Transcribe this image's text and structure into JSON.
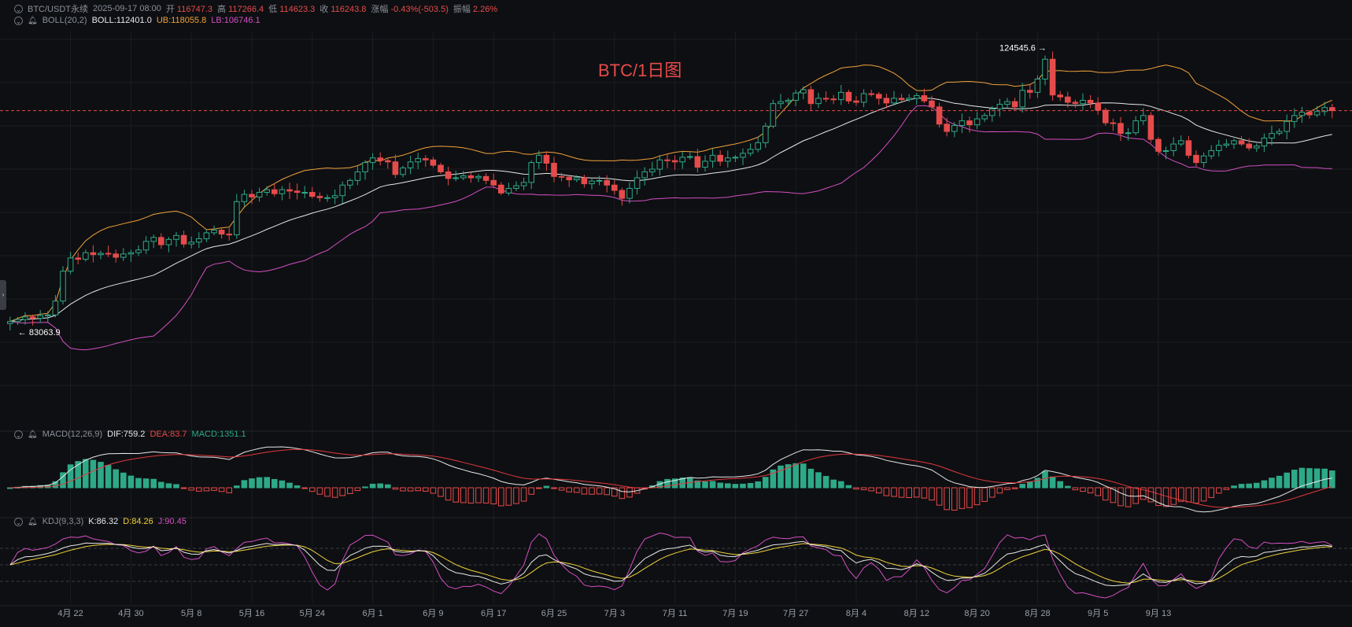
{
  "header": {
    "symbol": "BTC/USDT永续",
    "datetime": "2025-09-17 08:00",
    "open_label": "开",
    "open": "116747.3",
    "high_label": "高",
    "high": "117266.4",
    "low_label": "低",
    "low": "114623.3",
    "close_label": "收",
    "close": "116243.8",
    "change_label": "涨幅",
    "change": "-0.43%(-503.5)",
    "amplitude_label": "振幅",
    "amplitude": "2.26%"
  },
  "boll": {
    "name": "BOLL(20,2)",
    "mid": "BOLL:112401.0",
    "ub": "UB:118055.8",
    "lb": "LB:106746.1"
  },
  "macd": {
    "name": "MACD(12,26,9)",
    "dif": "DIF:759.2",
    "dea": "DEA:83.7",
    "macd": "MACD:1351.1"
  },
  "kdj": {
    "name": "KDJ(9,3,3)",
    "k": "K:86.32",
    "d": "D:84.26",
    "j": "J:90.45"
  },
  "watermark": "BTC/1日图",
  "annotations": {
    "high_marker": "124545.6",
    "low_marker": "83063.9"
  },
  "colors": {
    "up": "#2ea988",
    "down": "#e64b4b",
    "mid": "#e8e8e8",
    "ub": "#f0a23c",
    "lb": "#d34fc4",
    "dea": "#e0393e",
    "dif": "#e8e8e8",
    "k": "#e8e8e8",
    "d": "#f0d23c",
    "j": "#d34fc4"
  },
  "icons": {
    "toggle": "chevron-down-icon",
    "alert": "bell-icon",
    "collapse": "chevron-right-icon"
  },
  "chart_data": [
    {
      "type": "candlestick",
      "interval": "1日",
      "x_tick_labels": [
        "4月 22",
        "4月 30",
        "5月 8",
        "5月 16",
        "5月 24",
        "6月 1",
        "6月 9",
        "6月 17",
        "6月 25",
        "7月 3",
        "7月 11",
        "7月 19",
        "7月 27",
        "8月 4",
        "8月 12",
        "8月 20",
        "8月 28",
        "9月 5",
        "9月 13"
      ],
      "ylim": [
        70000,
        127000
      ],
      "current_price": 116243.8,
      "close_approx": [
        84400,
        84700,
        85100,
        84900,
        85300,
        85400,
        87500,
        92000,
        94000,
        93800,
        94800,
        94500,
        94700,
        94600,
        94100,
        94600,
        94800,
        95200,
        96500,
        97100,
        96000,
        96800,
        97400,
        96100,
        96400,
        96900,
        97800,
        98200,
        97600,
        97500,
        102500,
        103600,
        103200,
        103900,
        104300,
        103700,
        104300,
        104100,
        103900,
        103900,
        103300,
        103100,
        103100,
        103400,
        105000,
        105700,
        107000,
        108400,
        109100,
        108700,
        108500,
        106600,
        107600,
        108500,
        109000,
        108800,
        108000,
        107000,
        106000,
        106100,
        106400,
        106100,
        106300,
        105700,
        105000,
        103800,
        104500,
        104900,
        105400,
        108400,
        109500,
        108300,
        106300,
        106200,
        105800,
        106100,
        105200,
        105600,
        105700,
        105000,
        104200,
        103000,
        104500,
        106100,
        107000,
        107400,
        108800,
        108700,
        108500,
        109200,
        109300,
        107700,
        108600,
        109500,
        108600,
        109100,
        109200,
        109800,
        110400,
        111400,
        113900,
        117300,
        117600,
        117800,
        118900,
        119400,
        117300,
        118100,
        118000,
        117900,
        119000,
        117700,
        117500,
        118800,
        118700,
        118100,
        117400,
        118100,
        117900,
        118100,
        118500,
        117700,
        116800,
        114200,
        113100,
        114000,
        114700,
        114100,
        115000,
        115500,
        116500,
        117200,
        117600,
        116800,
        119300,
        119000,
        121000,
        124000,
        118600,
        118300,
        117500,
        117300,
        117800,
        117400,
        116300,
        114400,
        114300,
        112800,
        112900,
        114700,
        115500,
        111900,
        110100,
        110200,
        111200,
        111700,
        109500,
        108400,
        109400,
        110200,
        111000,
        111200,
        111700,
        111200,
        110600,
        110900,
        112100,
        112800,
        113100,
        114600,
        115500,
        116000,
        115600,
        116100,
        116700,
        116243.8
      ]
    },
    {
      "type": "bar",
      "title": "MACD(12,26,9)",
      "series": [
        {
          "name": "DIF"
        },
        {
          "name": "DEA"
        },
        {
          "name": "MACD"
        }
      ]
    },
    {
      "type": "line",
      "title": "KDJ(9,3,3)",
      "series": [
        {
          "name": "K"
        },
        {
          "name": "D"
        },
        {
          "name": "J"
        }
      ]
    }
  ]
}
